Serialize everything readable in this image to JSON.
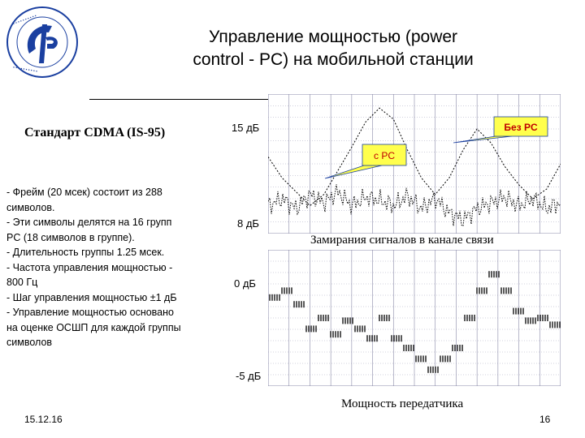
{
  "slide": {
    "title_line1": "Управление мощностью (power",
    "title_line2": "control - PC) на мобильной станции",
    "subtitle": "Стандарт CDMA (IS-95)",
    "bullets": [
      "- Фрейм (20 мсек) состоит из 288",
      "символов.",
      "- Эти символы делятся на 16 групп",
      "PC (18 символов в группе).",
      "- Длительность группы 1.25 мсек.",
      "- Частота управления мощностью -",
      "800 Гц",
      "- Шаг управления мощностью ±1 дБ",
      "- Управление мощностью основано",
      "на оценке ОСШП для каждой группы",
      "символов"
    ],
    "footer_date": "15.12.16",
    "footer_page": "16"
  },
  "chart_fading": {
    "label_top": "15 дБ",
    "label_bottom": "8 дБ",
    "callout_with_pc": "с PC",
    "callout_without_pc": "Без PC",
    "caption": "Замирания сигналов в канале связи"
  },
  "chart_power": {
    "label_top": "0 дБ",
    "label_bottom": "-5 дБ",
    "caption": "Мощность передатчика"
  },
  "colors": {
    "grid": "#8a8aa8",
    "callout_fill": "#ffff4d",
    "callout_text": "#c00000",
    "logo_blue": "#1a3fa0"
  },
  "chart_data": [
    {
      "type": "line",
      "series": [
        {
          "values": [
            0.55,
            0.4,
            0.3,
            0.2,
            0.28,
            0.45,
            0.62,
            0.8,
            0.9,
            0.82,
            0.6,
            0.4,
            0.28,
            0.4,
            0.6,
            0.75,
            0.65,
            0.48,
            0.35,
            0.25,
            0.32,
            0.5
          ]
        },
        {
          "values": [
            0.2,
            0.25,
            0.18,
            0.28,
            0.22,
            0.3,
            0.2,
            0.26,
            0.24,
            0.2,
            0.27,
            0.18,
            0.25,
            0.15,
            0.1,
            0.18,
            0.22,
            0.26,
            0.2,
            0.25,
            0.18,
            0.22
          ]
        }
      ]
    },
    {
      "type": "line",
      "series": [
        {
          "values": [
            0.65,
            0.7,
            0.6,
            0.42,
            0.5,
            0.38,
            0.48,
            0.42,
            0.35,
            0.5,
            0.35,
            0.28,
            0.2,
            0.12,
            0.2,
            0.28,
            0.5,
            0.7,
            0.82,
            0.7,
            0.55,
            0.48,
            0.5,
            0.45
          ]
        }
      ]
    }
  ]
}
